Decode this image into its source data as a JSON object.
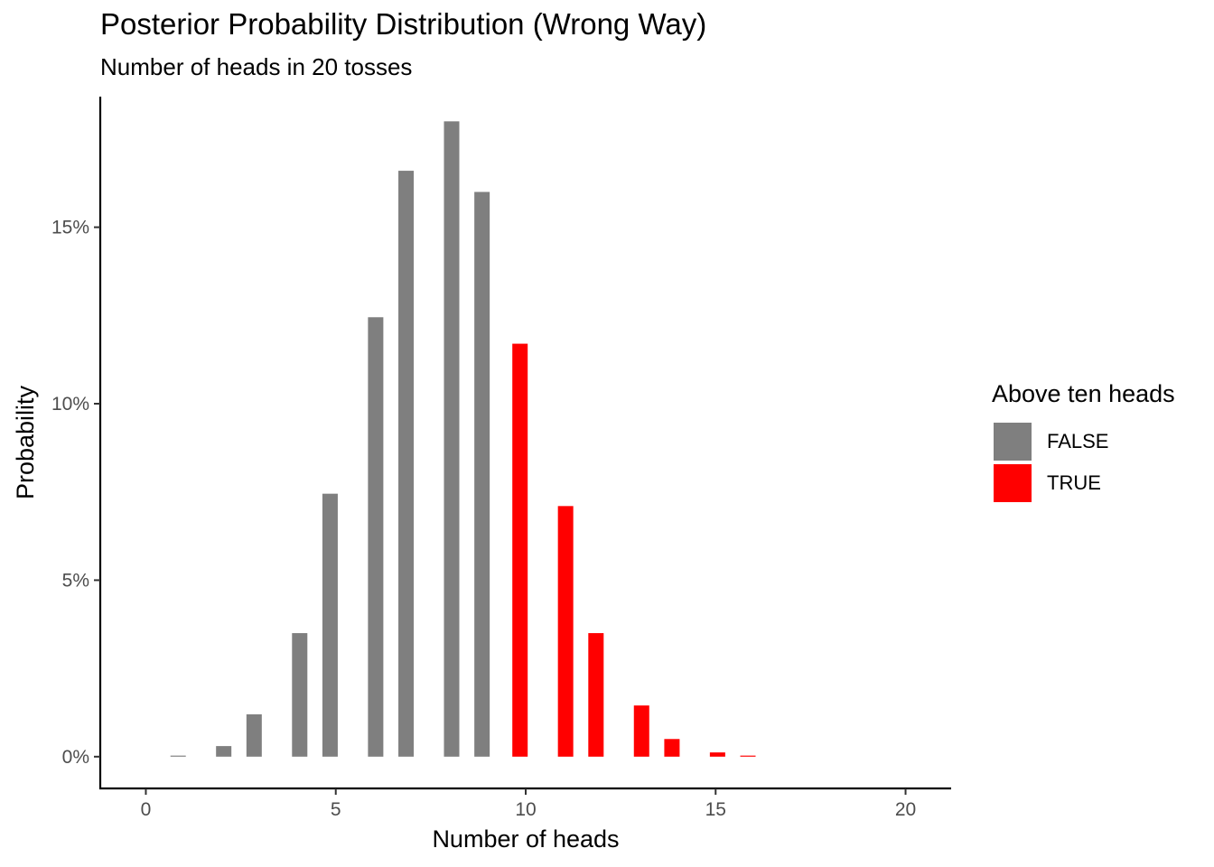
{
  "chart_data": {
    "type": "bar",
    "title": "Posterior Probability Distribution (Wrong Way)",
    "subtitle": "Number of heads in 20 tosses",
    "xlabel": "Number of heads",
    "ylabel": "Probability",
    "xlim": [
      -1.2,
      21.2
    ],
    "ylim": [
      -0.9,
      18.7
    ],
    "x_ticks": [
      0,
      5,
      10,
      15,
      20
    ],
    "x_tick_labels": [
      "0",
      "5",
      "10",
      "15",
      "20"
    ],
    "y_ticks": [
      0,
      5,
      10,
      15
    ],
    "y_tick_labels": [
      "0%",
      "5%",
      "10%",
      "15%"
    ],
    "value_unit": "percent",
    "grid": false,
    "legend": {
      "title": "Above ten heads",
      "position": "right",
      "entries": [
        {
          "label": "FALSE",
          "color": "#7f7f7f"
        },
        {
          "label": "TRUE",
          "color": "#ff0000"
        }
      ]
    },
    "bars": [
      {
        "x": 0.85,
        "value": 0.03,
        "group": "FALSE"
      },
      {
        "x": 2.05,
        "value": 0.3,
        "group": "FALSE"
      },
      {
        "x": 2.85,
        "value": 1.2,
        "group": "FALSE"
      },
      {
        "x": 4.05,
        "value": 3.5,
        "group": "FALSE"
      },
      {
        "x": 4.85,
        "value": 7.45,
        "group": "FALSE"
      },
      {
        "x": 6.05,
        "value": 12.45,
        "group": "FALSE"
      },
      {
        "x": 6.85,
        "value": 16.6,
        "group": "FALSE"
      },
      {
        "x": 8.05,
        "value": 18.0,
        "group": "FALSE"
      },
      {
        "x": 8.85,
        "value": 16.0,
        "group": "FALSE"
      },
      {
        "x": 9.85,
        "value": 11.7,
        "group": "TRUE"
      },
      {
        "x": 11.05,
        "value": 7.1,
        "group": "TRUE"
      },
      {
        "x": 11.85,
        "value": 3.5,
        "group": "TRUE"
      },
      {
        "x": 13.05,
        "value": 1.45,
        "group": "TRUE"
      },
      {
        "x": 13.85,
        "value": 0.5,
        "group": "TRUE"
      },
      {
        "x": 15.05,
        "value": 0.12,
        "group": "TRUE"
      },
      {
        "x": 15.85,
        "value": 0.03,
        "group": "TRUE"
      }
    ]
  }
}
